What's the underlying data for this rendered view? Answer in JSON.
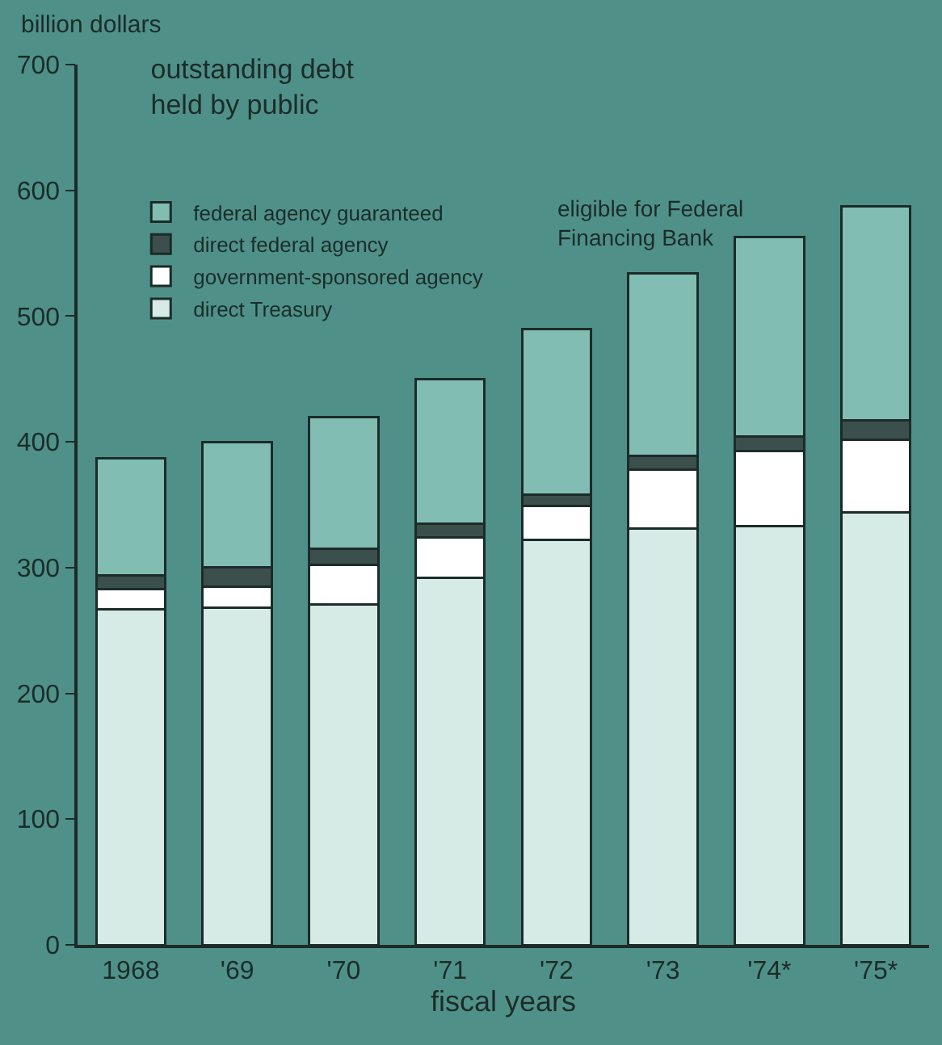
{
  "chart_data": {
    "type": "bar",
    "stacked": true,
    "title": "outstanding debt held by public",
    "xlabel": "fiscal years",
    "ylabel": "billion dollars",
    "categories": [
      "1968",
      "'69",
      "'70",
      "'71",
      "'72",
      "'73",
      "'74*",
      "'75*"
    ],
    "series": [
      {
        "name": "direct Treasury",
        "color": "#d6ebe6",
        "values": [
          267,
          268,
          271,
          292,
          322,
          331,
          333,
          344
        ]
      },
      {
        "name": "government-sponsored agency",
        "color": "#ffffff",
        "values": [
          16,
          17,
          31,
          32,
          27,
          47,
          60,
          58
        ]
      },
      {
        "name": "direct federal agency",
        "color": "#3b4f4c",
        "values": [
          11,
          15,
          13,
          11,
          9,
          11,
          11,
          15
        ]
      },
      {
        "name": "federal agency guaranteed",
        "color": "#82bdb4",
        "values": [
          93,
          100,
          105,
          115,
          132,
          145,
          159,
          170
        ]
      }
    ],
    "annotations": [
      "eligible for Federal Financing Bank"
    ],
    "ylim": [
      0,
      700
    ],
    "yticks": [
      0,
      100,
      200,
      300,
      400,
      500,
      600,
      700
    ],
    "grid": false,
    "legend": "top left"
  }
}
